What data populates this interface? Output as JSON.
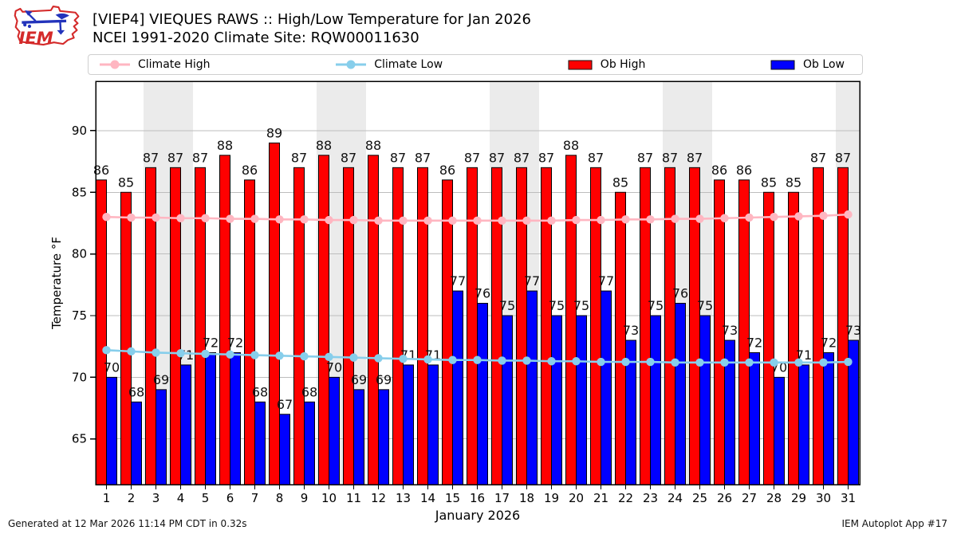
{
  "header": {
    "logo_text": "IEM",
    "title_line1": "[VIEP4] VIEQUES RAWS :: High/Low Temperature for Jan 2026",
    "title_line2": "NCEI 1991-2020 Climate Site: RQW00011630"
  },
  "legend": {
    "items": [
      {
        "label": "Climate High",
        "type": "line",
        "color": "#ffb6c1"
      },
      {
        "label": "Climate Low",
        "type": "line",
        "color": "#87ceeb"
      },
      {
        "label": "Ob High",
        "type": "bar",
        "color": "#ff0000"
      },
      {
        "label": "Ob Low",
        "type": "bar",
        "color": "#0000ff"
      }
    ]
  },
  "chart_data": {
    "type": "bar",
    "title": "[VIEP4] VIEQUES RAWS :: High/Low Temperature for Jan 2026",
    "subtitle": "NCEI 1991-2020 Climate Site: RQW00011630",
    "xlabel": "January 2026",
    "ylabel": "Temperature °F",
    "ylim": [
      61.3,
      94.0
    ],
    "yticks": [
      65,
      70,
      75,
      80,
      85,
      90
    ],
    "grid": true,
    "legend_position": "top",
    "bar_labels": true,
    "band_color": "#ebebeb",
    "grid_color": "#bdbdbd",
    "categories": [
      1,
      2,
      3,
      4,
      5,
      6,
      7,
      8,
      9,
      10,
      11,
      12,
      13,
      14,
      15,
      16,
      17,
      18,
      19,
      20,
      21,
      22,
      23,
      24,
      25,
      26,
      27,
      28,
      29,
      30,
      31
    ],
    "series": [
      {
        "name": "Ob High",
        "type": "bar",
        "color": "#ff0000",
        "values": [
          86,
          85,
          87,
          87,
          87,
          88,
          86,
          89,
          87,
          88,
          87,
          88,
          87,
          87,
          86,
          87,
          87,
          87,
          87,
          88,
          87,
          85,
          87,
          87,
          87,
          86,
          86,
          85,
          85,
          87,
          87
        ]
      },
      {
        "name": "Ob Low",
        "type": "bar",
        "color": "#0000ff",
        "values": [
          70,
          68,
          69,
          71,
          72,
          72,
          68,
          67,
          68,
          70,
          69,
          69,
          71,
          71,
          77,
          76,
          75,
          77,
          75,
          75,
          77,
          73,
          75,
          76,
          75,
          73,
          72,
          70,
          71,
          72,
          73
        ]
      },
      {
        "name": "Climate High",
        "type": "line",
        "color": "#ffb6c1",
        "values": [
          83.0,
          82.95,
          82.95,
          82.9,
          82.9,
          82.85,
          82.85,
          82.8,
          82.8,
          82.75,
          82.75,
          82.7,
          82.7,
          82.7,
          82.7,
          82.7,
          82.7,
          82.7,
          82.7,
          82.75,
          82.75,
          82.8,
          82.8,
          82.85,
          82.85,
          82.9,
          82.95,
          83.0,
          83.05,
          83.1,
          83.2
        ]
      },
      {
        "name": "Climate Low",
        "type": "line",
        "color": "#87ceeb",
        "values": [
          72.2,
          72.1,
          72.0,
          71.95,
          71.9,
          71.85,
          71.8,
          71.75,
          71.7,
          71.65,
          71.6,
          71.55,
          71.5,
          71.45,
          71.4,
          71.4,
          71.35,
          71.35,
          71.3,
          71.3,
          71.25,
          71.25,
          71.25,
          71.2,
          71.2,
          71.2,
          71.2,
          71.2,
          71.2,
          71.2,
          71.25
        ]
      }
    ],
    "weekend_bands": [
      [
        2.5,
        4.5
      ],
      [
        9.5,
        11.5
      ],
      [
        16.5,
        18.5
      ],
      [
        23.5,
        25.5
      ],
      [
        30.5,
        32
      ]
    ]
  },
  "footer": {
    "left": "Generated at 12 Mar 2026 11:14 PM CDT in 0.32s",
    "right": "IEM Autoplot App #17"
  }
}
